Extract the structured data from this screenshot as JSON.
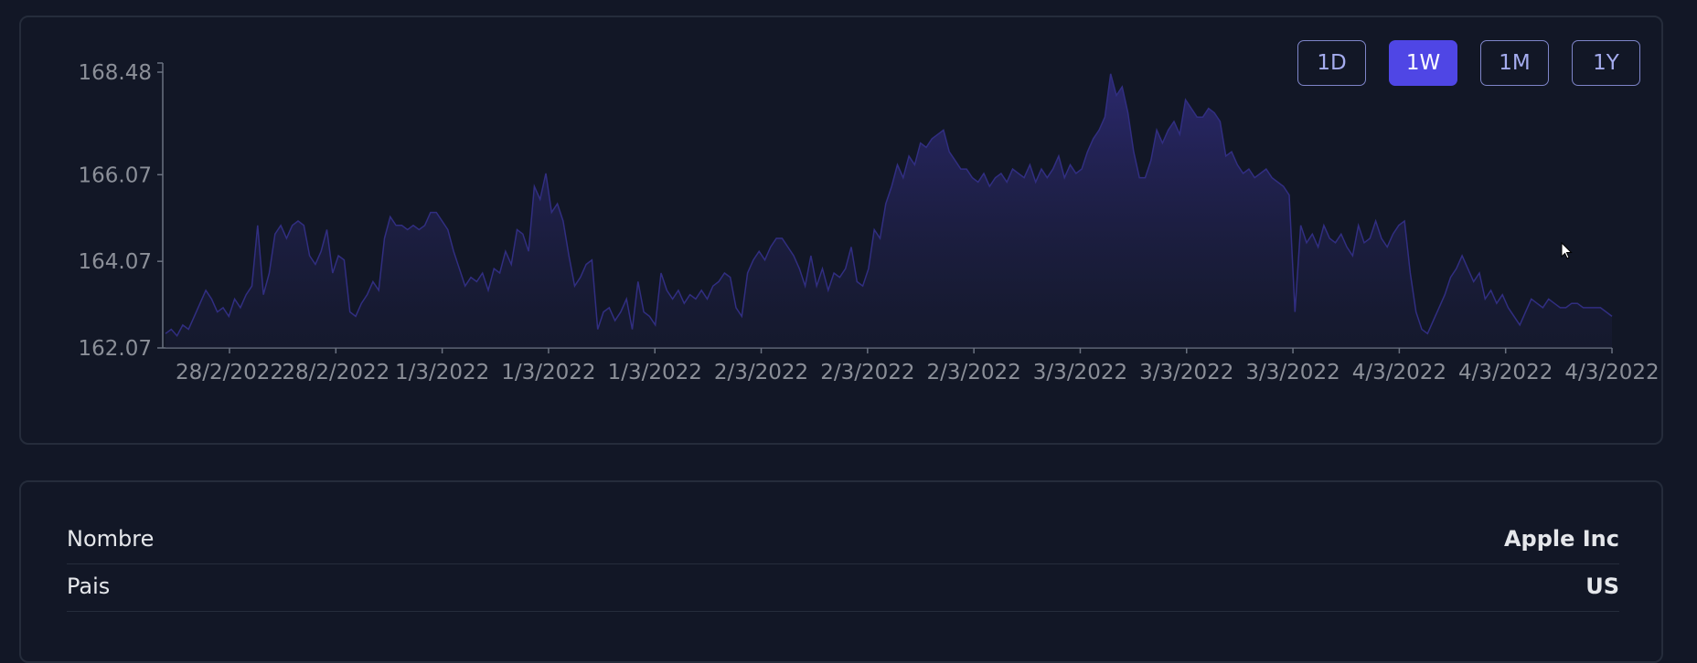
{
  "range_buttons": [
    {
      "label": "1D",
      "active": false
    },
    {
      "label": "1W",
      "active": true
    },
    {
      "label": "1M",
      "active": false
    },
    {
      "label": "1Y",
      "active": false
    }
  ],
  "colors": {
    "background": "#121726",
    "card_border": "#252c3b",
    "accent": "#4f46e5",
    "series_line": "#312e81",
    "axis_text": "#8b8f98"
  },
  "chart_data": {
    "type": "area",
    "title": "",
    "xlabel": "",
    "ylabel": "",
    "ylim": [
      162.07,
      168.48
    ],
    "y_ticks": [
      "168.48",
      "166.07",
      "164.07",
      "162.07"
    ],
    "y_tick_values": [
      168.48,
      166.07,
      164.07,
      162.07
    ],
    "x_ticks": [
      "28/2/2022",
      "28/2/2022",
      "1/3/2022",
      "1/3/2022",
      "1/3/2022",
      "2/3/2022",
      "2/3/2022",
      "2/3/2022",
      "3/3/2022",
      "3/3/2022",
      "3/3/2022",
      "4/3/2022",
      "4/3/2022",
      "4/3/2022"
    ],
    "grid": false,
    "series": [
      {
        "values": [
          162.4,
          162.5,
          162.35,
          162.6,
          162.5,
          162.8,
          163.1,
          163.4,
          163.2,
          162.9,
          163.0,
          162.8,
          163.2,
          163.0,
          163.3,
          163.5,
          164.9,
          163.3,
          163.8,
          164.7,
          164.9,
          164.6,
          164.9,
          165.0,
          164.9,
          164.2,
          164.0,
          164.3,
          164.8,
          163.8,
          164.2,
          164.1,
          162.9,
          162.8,
          163.1,
          163.3,
          163.6,
          163.4,
          164.6,
          165.1,
          164.9,
          164.9,
          164.8,
          164.9,
          164.8,
          164.9,
          165.2,
          165.2,
          165.0,
          164.8,
          164.3,
          163.9,
          163.5,
          163.7,
          163.6,
          163.8,
          163.4,
          163.9,
          163.8,
          164.3,
          164.0,
          164.8,
          164.7,
          164.3,
          165.8,
          165.5,
          166.1,
          165.2,
          165.4,
          165.0,
          164.2,
          163.5,
          163.7,
          164.0,
          164.1,
          162.5,
          162.9,
          163.0,
          162.7,
          162.9,
          163.2,
          162.5,
          163.6,
          162.9,
          162.8,
          162.6,
          163.8,
          163.4,
          163.2,
          163.4,
          163.1,
          163.3,
          163.2,
          163.4,
          163.2,
          163.5,
          163.6,
          163.8,
          163.7,
          163.0,
          162.8,
          163.8,
          164.1,
          164.3,
          164.1,
          164.4,
          164.6,
          164.6,
          164.4,
          164.2,
          163.9,
          163.5,
          164.2,
          163.5,
          163.9,
          163.4,
          163.8,
          163.7,
          163.9,
          164.4,
          163.6,
          163.5,
          163.9,
          164.8,
          164.6,
          165.4,
          165.8,
          166.3,
          166.0,
          166.5,
          166.3,
          166.8,
          166.7,
          166.9,
          167.0,
          167.1,
          166.6,
          166.4,
          166.2,
          166.2,
          166.0,
          165.9,
          166.1,
          165.8,
          166.0,
          166.1,
          165.9,
          166.2,
          166.1,
          166.0,
          166.3,
          165.9,
          166.2,
          166.0,
          166.2,
          166.5,
          166.0,
          166.3,
          166.1,
          166.2,
          166.6,
          166.9,
          167.1,
          167.4,
          168.4,
          167.9,
          168.1,
          167.5,
          166.6,
          166.0,
          166.0,
          166.4,
          167.1,
          166.8,
          167.1,
          167.3,
          167.0,
          167.8,
          167.6,
          167.4,
          167.4,
          167.6,
          167.5,
          167.3,
          166.5,
          166.6,
          166.3,
          166.1,
          166.2,
          166.0,
          166.1,
          166.2,
          166.0,
          165.9,
          165.8,
          165.6,
          162.9,
          164.9,
          164.5,
          164.7,
          164.4,
          164.9,
          164.6,
          164.5,
          164.7,
          164.4,
          164.2,
          164.9,
          164.5,
          164.6,
          165.0,
          164.6,
          164.4,
          164.7,
          164.9,
          165.0,
          163.8,
          162.9,
          162.5,
          162.4,
          162.7,
          163.0,
          163.3,
          163.7,
          163.9,
          164.2,
          163.9,
          163.6,
          163.8,
          163.2,
          163.4,
          163.1,
          163.3,
          163.0,
          162.8,
          162.6,
          162.9,
          163.2,
          163.1,
          163.0,
          163.2,
          163.1,
          163.0,
          163.0,
          163.1,
          163.1,
          163.0,
          163.0,
          163.0,
          163.0,
          162.9,
          162.8
        ]
      }
    ]
  },
  "info": [
    {
      "label": "Nombre",
      "value": "Apple Inc"
    },
    {
      "label": "Pais",
      "value": "US"
    }
  ]
}
